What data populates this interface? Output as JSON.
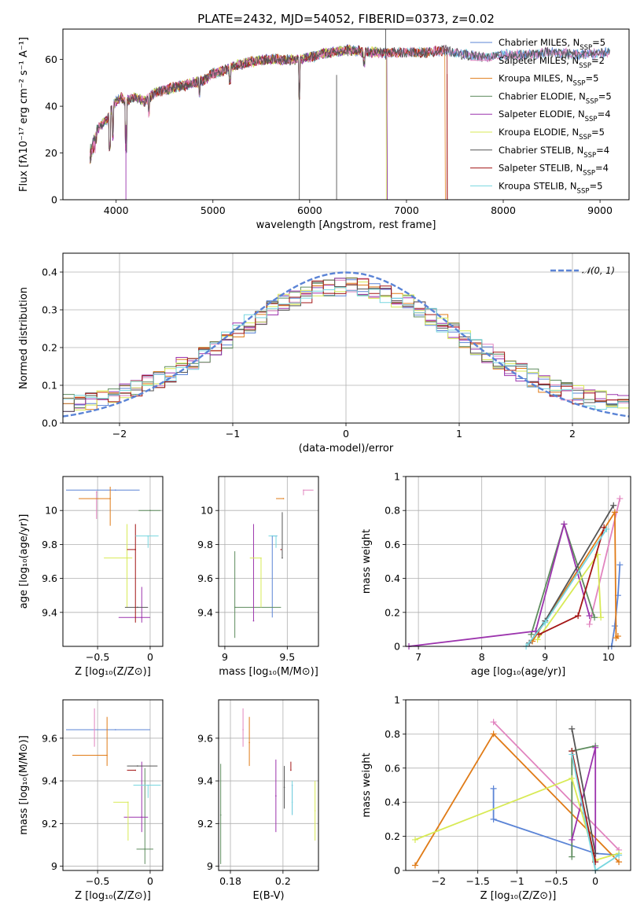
{
  "series_colors": [
    "#5b84d6",
    "#e184bf",
    "#e07b17",
    "#5e8c5e",
    "#9c34ad",
    "#d8ea55",
    "#555555",
    "#a31515",
    "#77d6df"
  ],
  "chart_data": [
    {
      "id": "spectrum",
      "type": "line",
      "title": "PLATE=2432, MJD=54052, FIBERID=0373, z=0.02",
      "xlabel": "wavelength [Angstrom, rest frame]",
      "ylabel": "Flux [fλ10⁻¹⁷ erg cm⁻² s⁻¹ A⁻¹]",
      "xlim": [
        3450,
        9300
      ],
      "ylim": [
        0,
        73
      ],
      "xticks": [
        4000,
        5000,
        6000,
        7000,
        8000,
        9000
      ],
      "yticks": [
        0,
        20,
        40,
        60
      ],
      "grid": false,
      "legend": "top-right",
      "legend_entries": [
        "Chabrier MILES, N_SSP=5",
        "Salpeter MILES, N_SSP=2",
        "Kroupa MILES, N_SSP=5",
        "Chabrier ELODIE, N_SSP=5",
        "Salpeter ELODIE, N_SSP=4",
        "Kroupa ELODIE, N_SSP=5",
        "Chabrier STELIB, N_SSP=4",
        "Salpeter STELIB, N_SSP=4",
        "Kroupa STELIB, N_SSP=5"
      ],
      "continuum": [
        [
          3730,
          22
        ],
        [
          3800,
          30
        ],
        [
          3900,
          34
        ],
        [
          3980,
          41
        ],
        [
          4050,
          44
        ],
        [
          4100,
          42
        ],
        [
          4200,
          44
        ],
        [
          4300,
          42
        ],
        [
          4400,
          46
        ],
        [
          4500,
          47
        ],
        [
          4700,
          49
        ],
        [
          4900,
          51
        ],
        [
          5000,
          54
        ],
        [
          5100,
          55
        ],
        [
          5200,
          57
        ],
        [
          5400,
          59
        ],
        [
          5600,
          60
        ],
        [
          5800,
          60
        ],
        [
          5900,
          60
        ],
        [
          6000,
          61
        ],
        [
          6200,
          63
        ],
        [
          6400,
          64
        ],
        [
          6600,
          63
        ],
        [
          6800,
          63
        ],
        [
          7000,
          63
        ],
        [
          7200,
          63
        ],
        [
          7400,
          64
        ],
        [
          7600,
          62
        ],
        [
          7800,
          61
        ],
        [
          8000,
          62
        ],
        [
          8200,
          62
        ],
        [
          8500,
          63
        ],
        [
          8800,
          62
        ],
        [
          9100,
          63
        ]
      ],
      "series": [
        {
          "name": "Chabrier MILES",
          "xmax": 9100
        },
        {
          "name": "Salpeter MILES",
          "xmax": 9100
        },
        {
          "name": "Kroupa MILES",
          "xmax": 7400
        },
        {
          "name": "Chabrier ELODIE",
          "xmax": 6800
        },
        {
          "name": "Salpeter ELODIE",
          "xmax": 6800
        },
        {
          "name": "Kroupa ELODIE",
          "xmax": 6790
        },
        {
          "name": "Chabrier STELIB",
          "xmax": 9100
        },
        {
          "name": "Salpeter STELIB",
          "xmax": 7420
        },
        {
          "name": "Kroupa STELIB",
          "xmax": 9100
        }
      ]
    },
    {
      "id": "residuals",
      "type": "line",
      "xlabel": "(data-model)/error",
      "ylabel": "Normed distribution",
      "xlim": [
        -2.5,
        2.5
      ],
      "ylim": [
        0,
        0.45
      ],
      "xticks": [
        -2,
        -1,
        0,
        1,
        2
      ],
      "yticks": [
        0.0,
        0.1,
        0.2,
        0.3,
        0.4
      ],
      "grid": true,
      "legend": "top-right",
      "legend_entries": [
        "𝒩(0, 1)"
      ],
      "bin_width": 0.1,
      "gaussian": {
        "mean": 0,
        "sigma": 1
      }
    },
    {
      "id": "age-vs-Z",
      "type": "scatter",
      "xlabel": "Z [log₁₀(Z/Z⊙)]",
      "ylabel": "age  [log₁₀(age/yr)]",
      "xlim": [
        -0.83,
        0.12
      ],
      "ylim": [
        9.2,
        10.2
      ],
      "xticks": [
        -0.5,
        0.0
      ],
      "yticks": [
        9.4,
        9.6,
        9.8,
        10.0
      ],
      "grid": true,
      "points": [
        {
          "x": -0.33,
          "y": 10.12,
          "xerr": [
            0.47,
            0.23
          ],
          "yerr": [
            0.0,
            0.0
          ]
        },
        {
          "x": -0.51,
          "y": 10.11,
          "xerr": [
            0.0,
            0.0
          ],
          "yerr": [
            0.16,
            0.0
          ]
        },
        {
          "x": -0.38,
          "y": 10.07,
          "xerr": [
            0.3,
            0.0
          ],
          "yerr": [
            0.16,
            0.07
          ]
        },
        {
          "x": 0.0,
          "y": 10.0,
          "xerr": [
            0.11,
            0.1
          ],
          "yerr": [
            0.0,
            0.0
          ]
        },
        {
          "x": -0.08,
          "y": 9.37,
          "xerr": [
            0.22,
            0.08
          ],
          "yerr": [
            0.03,
            0.18
          ]
        },
        {
          "x": -0.22,
          "y": 9.72,
          "xerr": [
            0.22,
            0.05
          ],
          "yerr": [
            0.29,
            0.2
          ]
        },
        {
          "x": -0.12,
          "y": 9.43,
          "xerr": [
            0.12,
            0.1
          ],
          "yerr": [
            0.0,
            0.0
          ]
        },
        {
          "x": -0.14,
          "y": 9.77,
          "xerr": [
            0.08,
            0.0
          ],
          "yerr": [
            0.43,
            0.15
          ]
        },
        {
          "x": -0.02,
          "y": 9.85,
          "xerr": [
            0.12,
            0.1
          ],
          "yerr": [
            0.07,
            0.0
          ]
        }
      ]
    },
    {
      "id": "age-vs-mass",
      "type": "scatter",
      "xlabel": "mass [log₁₀(M/M⊙)]",
      "ylabel": "",
      "xlim": [
        8.95,
        9.75
      ],
      "ylim": [
        9.2,
        10.2
      ],
      "xticks": [
        9.0,
        9.5
      ],
      "yticks": [
        9.4,
        9.6,
        9.8,
        10.0
      ],
      "grid": true,
      "points": [
        {
          "x": 9.38,
          "y": 9.85,
          "xerr": [
            0.0,
            0.04
          ],
          "yerr": [
            0.48,
            0.0
          ]
        },
        {
          "x": 9.63,
          "y": 10.12,
          "xerr": [
            0.0,
            0.08
          ],
          "yerr": [
            0.03,
            0.0
          ]
        },
        {
          "x": 9.47,
          "y": 10.07,
          "xerr": [
            0.06,
            0.0
          ],
          "yerr": [
            0.0,
            0.0
          ]
        },
        {
          "x": 9.08,
          "y": 9.43,
          "xerr": [
            0.0,
            0.37
          ],
          "yerr": [
            0.18,
            0.33
          ]
        },
        {
          "x": 9.23,
          "y": 9.35,
          "xerr": [
            0.0,
            0.0
          ],
          "yerr": [
            0.0,
            0.57
          ]
        },
        {
          "x": 9.29,
          "y": 9.72,
          "xerr": [
            0.09,
            0.0
          ],
          "yerr": [
            0.29,
            0.0
          ]
        },
        {
          "x": 9.46,
          "y": 9.72,
          "xerr": [
            0.0,
            0.0
          ],
          "yerr": [
            0.0,
            0.27
          ]
        },
        {
          "x": 9.45,
          "y": 9.77,
          "xerr": [
            0.0,
            0.0
          ],
          "yerr": [
            0.0,
            0.0
          ]
        },
        {
          "x": 9.41,
          "y": 9.85,
          "xerr": [
            0.06,
            0.0
          ],
          "yerr": [
            0.07,
            0.0
          ]
        }
      ]
    },
    {
      "id": "weight-vs-age",
      "type": "line",
      "xlabel": "age  [log₁₀(age/yr)]",
      "ylabel": "mass weight",
      "xlim": [
        6.8,
        10.35
      ],
      "ylim": [
        0.0,
        1.0
      ],
      "xticks": [
        7,
        8,
        9,
        10
      ],
      "yticks": [
        0.0,
        0.2,
        0.4,
        0.6,
        0.8,
        1.0
      ],
      "grid": true,
      "series": [
        {
          "x": [
            10.05,
            10.1,
            10.15,
            10.18
          ],
          "y": [
            0.0,
            0.12,
            0.3,
            0.48
          ]
        },
        {
          "x": [
            9.7,
            10.18
          ],
          "y": [
            0.13,
            0.87
          ]
        },
        {
          "x": [
            8.8,
            10.1,
            10.12,
            10.15
          ],
          "y": [
            0.03,
            0.79,
            0.05,
            0.06
          ]
        },
        {
          "x": [
            8.78,
            9.3,
            9.78
          ],
          "y": [
            0.07,
            0.72,
            0.17
          ]
        },
        {
          "x": [
            6.85,
            8.85,
            9.3,
            9.7
          ],
          "y": [
            0.0,
            0.09,
            0.72,
            0.18
          ]
        },
        {
          "x": [
            8.88,
            9.83,
            9.88
          ],
          "y": [
            0.04,
            0.54,
            0.17
          ]
        },
        {
          "x": [
            8.75,
            9.0,
            10.08
          ],
          "y": [
            0.02,
            0.15,
            0.83
          ]
        },
        {
          "x": [
            8.9,
            9.52,
            9.93
          ],
          "y": [
            0.07,
            0.18,
            0.7
          ]
        },
        {
          "x": [
            8.7,
            9.0,
            9.97
          ],
          "y": [
            0.0,
            0.14,
            0.69
          ]
        }
      ]
    },
    {
      "id": "mass-vs-Z",
      "type": "scatter",
      "xlabel": "Z [log₁₀(Z/Z⊙)]",
      "ylabel": "mass [log₁₀(M/M⊙)]",
      "xlim": [
        -0.83,
        0.12
      ],
      "ylim": [
        8.98,
        9.78
      ],
      "xticks": [
        -0.5,
        0.0
      ],
      "yticks": [
        9.0,
        9.2,
        9.4,
        9.6
      ],
      "grid": true,
      "points": [
        {
          "x": -0.33,
          "y": 9.64,
          "xerr": [
            0.47,
            0.33
          ],
          "yerr": [
            0.0,
            0.0
          ]
        },
        {
          "x": -0.53,
          "y": 9.64,
          "xerr": [
            0.0,
            0.0
          ],
          "yerr": [
            0.08,
            0.1
          ]
        },
        {
          "x": -0.41,
          "y": 9.52,
          "xerr": [
            0.33,
            0.0
          ],
          "yerr": [
            0.05,
            0.18
          ]
        },
        {
          "x": -0.05,
          "y": 9.08,
          "xerr": [
            0.08,
            0.08
          ],
          "yerr": [
            0.07,
            0.38
          ]
        },
        {
          "x": -0.08,
          "y": 9.23,
          "xerr": [
            0.17,
            0.06
          ],
          "yerr": [
            0.07,
            0.26
          ]
        },
        {
          "x": -0.21,
          "y": 9.3,
          "xerr": [
            0.14,
            0.0
          ],
          "yerr": [
            0.18,
            0.0
          ]
        },
        {
          "x": -0.12,
          "y": 9.47,
          "xerr": [
            0.1,
            0.19
          ],
          "yerr": [
            0.0,
            0.0
          ]
        },
        {
          "x": -0.14,
          "y": 9.45,
          "xerr": [
            0.08,
            0.0
          ],
          "yerr": [
            0.0,
            0.0
          ]
        },
        {
          "x": -0.02,
          "y": 9.38,
          "xerr": [
            0.14,
            0.12
          ],
          "yerr": [
            0.06,
            0.0
          ]
        }
      ]
    },
    {
      "id": "mass-vs-EBV",
      "type": "scatter",
      "xlabel": "E(B-V)",
      "ylabel": "",
      "xlim": [
        0.1755,
        0.2135
      ],
      "ylim": [
        8.98,
        9.78
      ],
      "xticks": [
        0.18,
        0.2
      ],
      "yticks": [
        9.0,
        9.2,
        9.4,
        9.6
      ],
      "grid": true,
      "points": [
        {
          "x": 0.2035,
          "y": 9.38,
          "xerr": [
            0.0,
            0.0
          ],
          "yerr": [
            0.14,
            0.0
          ]
        },
        {
          "x": 0.1848,
          "y": 9.64,
          "xerr": [
            0.0,
            0.0
          ],
          "yerr": [
            0.08,
            0.1
          ]
        },
        {
          "x": 0.1872,
          "y": 9.58,
          "xerr": [
            0.0,
            0.0
          ],
          "yerr": [
            0.11,
            0.12
          ]
        },
        {
          "x": 0.1763,
          "y": 9.24,
          "xerr": [
            0.0,
            0.0
          ],
          "yerr": [
            0.23,
            0.24
          ]
        },
        {
          "x": 0.1973,
          "y": 9.33,
          "xerr": [
            0.0,
            0.0
          ],
          "yerr": [
            0.17,
            0.17
          ]
        },
        {
          "x": 0.2122,
          "y": 9.26,
          "xerr": [
            0.0,
            0.0
          ],
          "yerr": [
            0.14,
            0.14
          ]
        },
        {
          "x": 0.2005,
          "y": 9.37,
          "xerr": [
            0.0,
            0.0
          ],
          "yerr": [
            0.1,
            0.1
          ]
        },
        {
          "x": 0.203,
          "y": 9.45,
          "xerr": [
            0.0,
            0.0
          ],
          "yerr": [
            0.0,
            0.04
          ]
        },
        {
          "x": 0.2035,
          "y": 9.3,
          "xerr": [
            0.0,
            0.0
          ],
          "yerr": [
            0.06,
            0.1
          ]
        }
      ]
    },
    {
      "id": "weight-vs-Z",
      "type": "line",
      "xlabel": "Z [log₁₀(Z/Z⊙)]",
      "ylabel": "mass weight",
      "xlim": [
        -2.42,
        0.45
      ],
      "ylim": [
        0.0,
        1.0
      ],
      "xticks": [
        -2.0,
        -1.5,
        -1.0,
        -0.5,
        0.0
      ],
      "yticks": [
        0.0,
        0.2,
        0.4,
        0.6,
        0.8,
        1.0
      ],
      "grid": true,
      "series": [
        {
          "x": [
            -1.3,
            -1.3,
            0.0,
            0.3
          ],
          "y": [
            0.48,
            0.3,
            0.1,
            0.09
          ]
        },
        {
          "x": [
            -1.3,
            0.3
          ],
          "y": [
            0.87,
            0.12
          ]
        },
        {
          "x": [
            -2.3,
            -1.3,
            0.3
          ],
          "y": [
            0.03,
            0.8,
            0.05
          ]
        },
        {
          "x": [
            -0.3,
            -0.3,
            0.0
          ],
          "y": [
            0.08,
            0.7,
            0.73
          ]
        },
        {
          "x": [
            -0.3,
            0.0,
            0.0
          ],
          "y": [
            0.18,
            0.72,
            0.06
          ]
        },
        {
          "x": [
            -2.3,
            -0.3,
            0.0,
            0.3
          ],
          "y": [
            0.18,
            0.54,
            0.06,
            0.1
          ]
        },
        {
          "x": [
            -0.3,
            0.0
          ],
          "y": [
            0.83,
            0.1
          ]
        },
        {
          "x": [
            -0.3,
            0.0
          ],
          "y": [
            0.7,
            0.05
          ]
        },
        {
          "x": [
            -0.3,
            0.0,
            0.3
          ],
          "y": [
            0.68,
            0.0,
            0.09
          ]
        }
      ]
    }
  ]
}
